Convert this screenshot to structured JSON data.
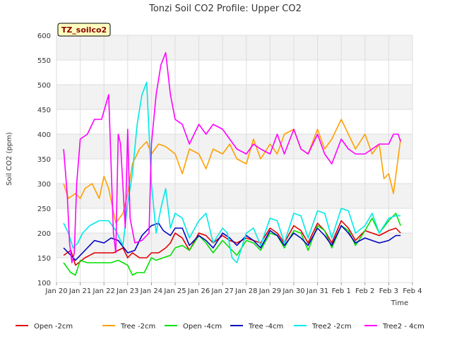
{
  "chart_data": {
    "type": "line",
    "title": "Tonzi Soil CO2 Profile: Upper CO2",
    "badge": "TZ_soilco2",
    "xlabel": "Time",
    "ylabel": "Soil CO2 (ppm)",
    "ylim": [
      100,
      600
    ],
    "yticks": [
      100,
      150,
      200,
      250,
      300,
      350,
      400,
      450,
      500,
      550,
      600
    ],
    "xlim": [
      0,
      15
    ],
    "xticks": [
      0,
      1,
      2,
      3,
      4,
      5,
      6,
      7,
      8,
      9,
      10,
      11,
      12,
      13,
      14,
      15
    ],
    "xtick_labels": [
      "Jan 20",
      "Jan 21",
      "Jan 22",
      "Jan 23",
      "Jan 24",
      "Jan 25",
      "Jan 26",
      "Jan 27",
      "Jan 28",
      "Jan 29",
      "Jan 30",
      "Jan 31",
      "Feb 1",
      "Feb 2",
      "Feb 3",
      "Feb 4"
    ],
    "x_unit": "days since Jan 20",
    "grid": true,
    "legend_position": "bottom",
    "series": [
      {
        "name": "Open -2cm",
        "color": "#e00000",
        "x": [
          0.3,
          0.6,
          0.8,
          1.2,
          1.6,
          2.0,
          2.4,
          2.8,
          3.0,
          3.2,
          3.5,
          3.8,
          4.0,
          4.3,
          4.6,
          4.8,
          5.0,
          5.3,
          5.6,
          6.0,
          6.3,
          6.6,
          7.0,
          7.3,
          7.6,
          8.0,
          8.3,
          8.6,
          9.0,
          9.3,
          9.6,
          10.0,
          10.3,
          10.6,
          11.0,
          11.3,
          11.6,
          12.0,
          12.3,
          12.6,
          13.0,
          13.3,
          13.6,
          14.0,
          14.3,
          14.5
        ],
        "y": [
          155,
          165,
          135,
          150,
          160,
          160,
          160,
          170,
          150,
          160,
          150,
          150,
          160,
          160,
          170,
          180,
          200,
          190,
          165,
          200,
          195,
          180,
          195,
          185,
          180,
          190,
          185,
          180,
          210,
          200,
          180,
          215,
          205,
          180,
          220,
          205,
          180,
          225,
          210,
          185,
          205,
          200,
          195,
          205,
          210,
          200
        ]
      },
      {
        "name": "Tree -2cm",
        "color": "#ffa000",
        "x": [
          0.3,
          0.5,
          0.8,
          1.0,
          1.2,
          1.5,
          1.8,
          2.0,
          2.2,
          2.5,
          2.8,
          3.0,
          3.2,
          3.5,
          3.8,
          4.0,
          4.3,
          4.6,
          5.0,
          5.3,
          5.6,
          6.0,
          6.3,
          6.6,
          7.0,
          7.3,
          7.6,
          8.0,
          8.3,
          8.6,
          9.0,
          9.3,
          9.6,
          10.0,
          10.3,
          10.6,
          11.0,
          11.3,
          11.6,
          12.0,
          12.3,
          12.6,
          13.0,
          13.3,
          13.6,
          13.8,
          14.0,
          14.2,
          14.5
        ],
        "y": [
          300,
          270,
          280,
          270,
          290,
          300,
          270,
          315,
          290,
          220,
          240,
          280,
          340,
          370,
          385,
          360,
          380,
          375,
          360,
          320,
          370,
          360,
          330,
          370,
          360,
          380,
          350,
          340,
          390,
          350,
          380,
          360,
          400,
          410,
          370,
          360,
          410,
          370,
          390,
          430,
          400,
          370,
          400,
          360,
          380,
          310,
          320,
          280,
          390
        ]
      },
      {
        "name": "Open -4cm",
        "color": "#00e000",
        "x": [
          0.3,
          0.6,
          0.8,
          1.0,
          1.3,
          1.6,
          2.0,
          2.3,
          2.6,
          3.0,
          3.2,
          3.4,
          3.7,
          4.0,
          4.2,
          4.5,
          4.8,
          5.0,
          5.3,
          5.6,
          6.0,
          6.3,
          6.6,
          7.0,
          7.3,
          7.6,
          8.0,
          8.3,
          8.6,
          9.0,
          9.3,
          9.6,
          10.0,
          10.3,
          10.6,
          11.0,
          11.3,
          11.6,
          12.0,
          12.3,
          12.6,
          13.0,
          13.3,
          13.6,
          14.0,
          14.3,
          14.5
        ],
        "y": [
          140,
          120,
          115,
          145,
          140,
          140,
          140,
          140,
          145,
          135,
          115,
          120,
          120,
          150,
          145,
          150,
          155,
          170,
          175,
          165,
          195,
          180,
          160,
          185,
          170,
          155,
          185,
          180,
          165,
          200,
          195,
          170,
          205,
          200,
          165,
          215,
          205,
          170,
          215,
          205,
          175,
          205,
          230,
          200,
          225,
          240,
          215
        ]
      },
      {
        "name": "Tree -4cm",
        "color": "#0000c0",
        "x": [
          0.3,
          0.6,
          0.8,
          1.0,
          1.3,
          1.6,
          2.0,
          2.3,
          2.6,
          3.0,
          3.3,
          3.6,
          4.0,
          4.3,
          4.5,
          4.8,
          5.0,
          5.3,
          5.6,
          6.0,
          6.3,
          6.6,
          7.0,
          7.3,
          7.6,
          8.0,
          8.3,
          8.6,
          9.0,
          9.3,
          9.6,
          10.0,
          10.3,
          10.6,
          11.0,
          11.3,
          11.6,
          12.0,
          12.3,
          12.6,
          13.0,
          13.3,
          13.6,
          14.0,
          14.3,
          14.5
        ],
        "y": [
          170,
          155,
          145,
          155,
          170,
          185,
          180,
          190,
          185,
          160,
          165,
          195,
          215,
          220,
          205,
          195,
          210,
          210,
          175,
          195,
          185,
          170,
          200,
          190,
          175,
          195,
          185,
          170,
          205,
          195,
          175,
          200,
          190,
          175,
          210,
          195,
          175,
          215,
          200,
          180,
          190,
          185,
          180,
          185,
          195,
          195
        ]
      },
      {
        "name": "Tree2 -2cm",
        "color": "#00e8e8",
        "x": [
          0.3,
          0.5,
          0.7,
          0.9,
          1.1,
          1.4,
          1.8,
          2.2,
          2.5,
          2.8,
          3.0,
          3.2,
          3.4,
          3.6,
          3.8,
          4.0,
          4.2,
          4.4,
          4.6,
          4.8,
          5.0,
          5.3,
          5.6,
          6.0,
          6.3,
          6.6,
          7.0,
          7.2,
          7.4,
          7.6,
          8.0,
          8.3,
          8.6,
          9.0,
          9.3,
          9.6,
          10.0,
          10.3,
          10.6,
          11.0,
          11.3,
          11.6,
          12.0,
          12.3,
          12.6,
          13.0,
          13.3,
          13.6,
          14.0,
          14.3,
          14.5
        ],
        "y": [
          220,
          200,
          170,
          180,
          200,
          215,
          225,
          225,
          205,
          175,
          260,
          320,
          420,
          480,
          505,
          300,
          200,
          250,
          290,
          210,
          240,
          230,
          190,
          225,
          240,
          180,
          210,
          200,
          150,
          140,
          200,
          210,
          175,
          230,
          225,
          180,
          240,
          235,
          190,
          245,
          240,
          190,
          250,
          245,
          200,
          215,
          240,
          200,
          230,
          235,
          235
        ]
      },
      {
        "name": "Tree2 - 4cm",
        "color": "#ff00ff",
        "x": [
          0.3,
          0.45,
          0.55,
          0.65,
          0.75,
          0.85,
          1.0,
          1.3,
          1.6,
          1.9,
          2.2,
          2.4,
          2.5,
          2.6,
          2.7,
          2.9,
          3.0,
          3.1,
          3.3,
          3.6,
          3.9,
          4.0,
          4.2,
          4.4,
          4.6,
          4.8,
          5.0,
          5.3,
          5.6,
          6.0,
          6.3,
          6.6,
          7.0,
          7.3,
          7.6,
          8.0,
          8.3,
          8.6,
          9.0,
          9.3,
          9.6,
          10.0,
          10.3,
          10.6,
          11.0,
          11.3,
          11.6,
          12.0,
          12.3,
          12.6,
          13.0,
          13.3,
          13.6,
          14.0,
          14.2,
          14.4,
          14.5
        ],
        "y": [
          370,
          280,
          180,
          140,
          160,
          300,
          390,
          400,
          430,
          430,
          480,
          200,
          160,
          400,
          380,
          210,
          410,
          230,
          180,
          185,
          200,
          380,
          480,
          540,
          565,
          480,
          430,
          420,
          380,
          420,
          400,
          420,
          410,
          390,
          370,
          360,
          380,
          370,
          360,
          400,
          360,
          410,
          370,
          360,
          400,
          360,
          340,
          390,
          370,
          360,
          360,
          370,
          380,
          380,
          400,
          400,
          385
        ]
      }
    ]
  }
}
